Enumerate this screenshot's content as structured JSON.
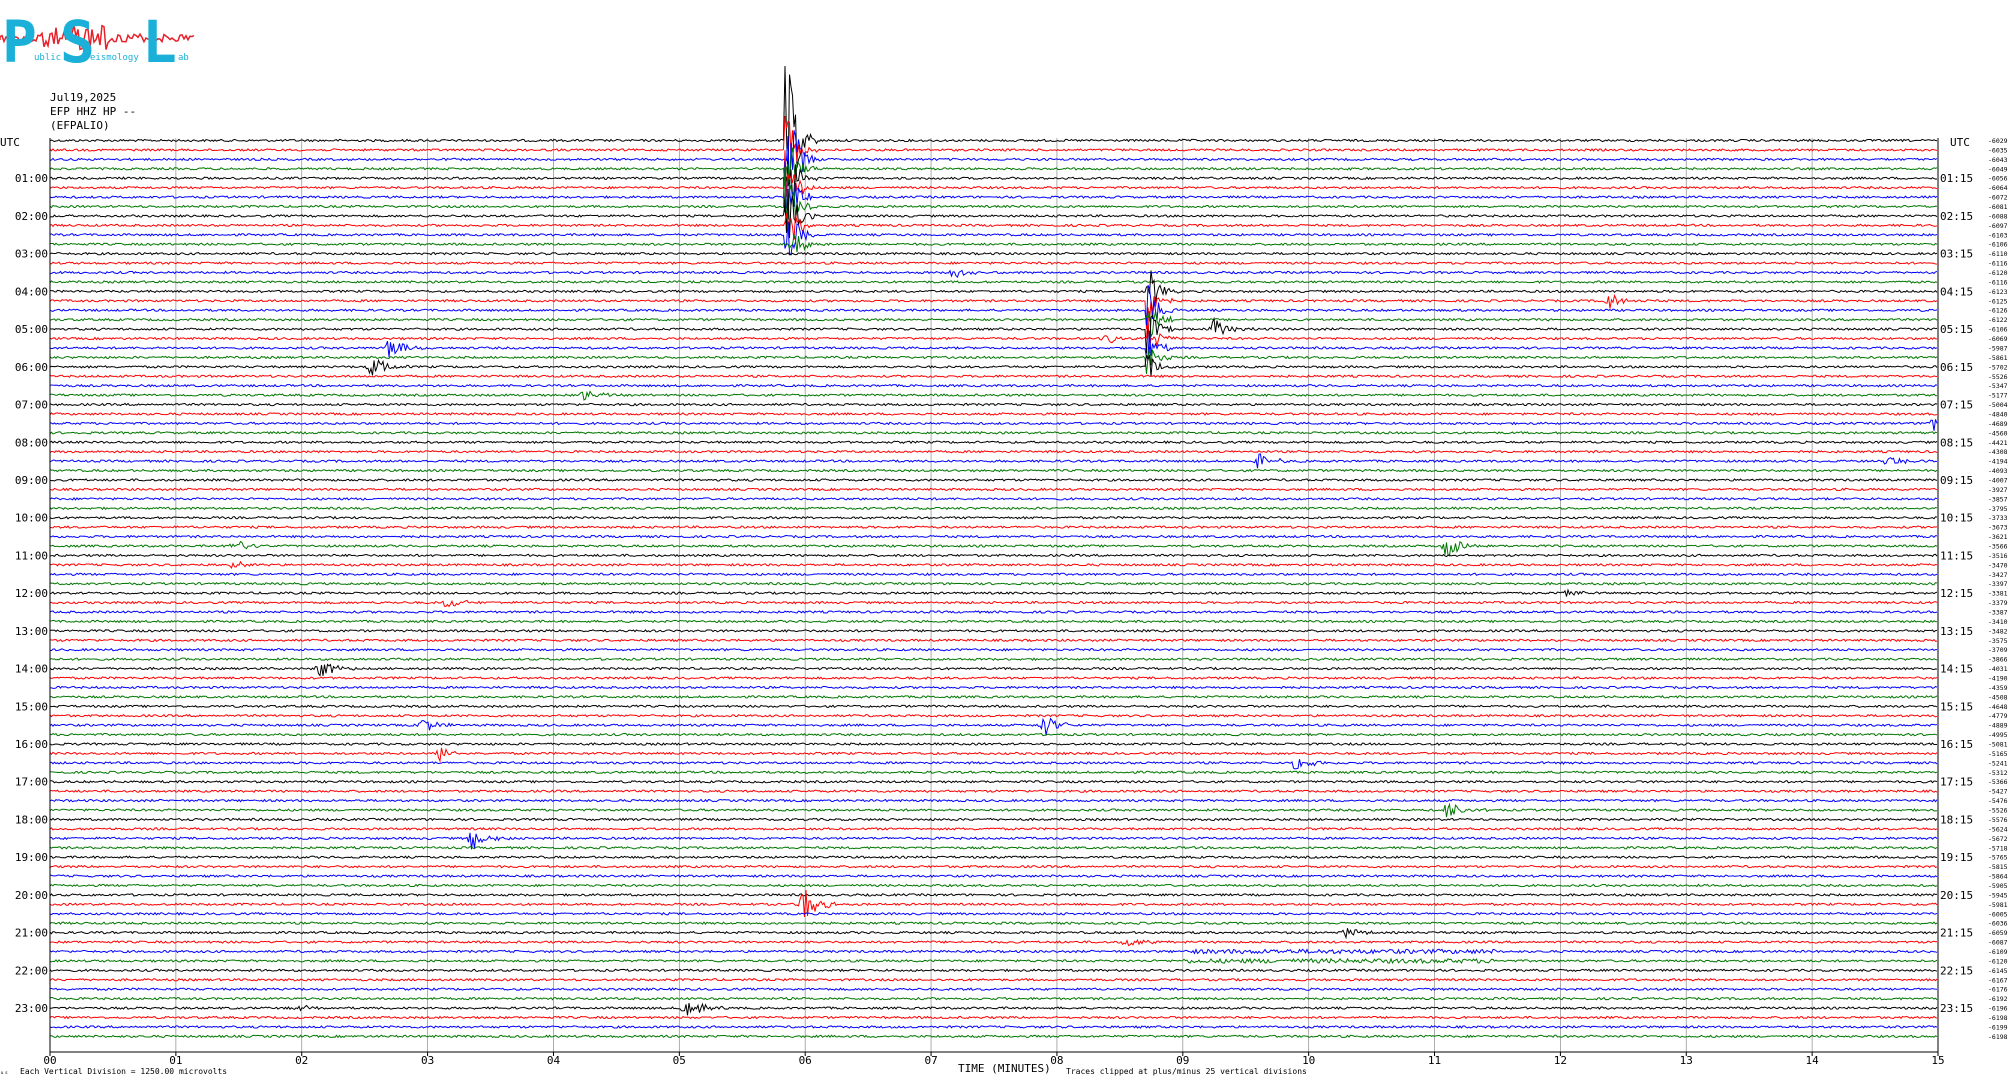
{
  "logo": {
    "letters": [
      "P",
      "S",
      "L"
    ],
    "words": [
      "ublic",
      "eismology",
      "ab"
    ],
    "color": "#1ab0d8",
    "wave_color": "#e8202a"
  },
  "header": {
    "date": "Jul19,2025",
    "station": "EFP HHZ HP --",
    "location": "(EFPALIO)"
  },
  "left_axis_title": "UTC",
  "right_axis_title": "UTC",
  "left_hour_labels": [
    "01:00",
    "02:00",
    "03:00",
    "04:00",
    "05:00",
    "06:00",
    "07:00",
    "08:00",
    "09:00",
    "10:00",
    "11:00",
    "12:00",
    "13:00",
    "14:00",
    "15:00",
    "16:00",
    "17:00",
    "18:00",
    "19:00",
    "20:00",
    "21:00",
    "22:00",
    "23:00"
  ],
  "right_hour_labels": [
    "01:15",
    "02:15",
    "03:15",
    "04:15",
    "05:15",
    "06:15",
    "07:15",
    "08:15",
    "09:15",
    "10:15",
    "11:15",
    "12:15",
    "13:15",
    "14:15",
    "15:15",
    "16:15",
    "17:15",
    "18:15",
    "19:15",
    "20:15",
    "21:15",
    "22:15",
    "23:15"
  ],
  "x_tick_labels": [
    "00",
    "01",
    "02",
    "03",
    "04",
    "05",
    "06",
    "07",
    "08",
    "09",
    "10",
    "11",
    "12",
    "13",
    "14",
    "15"
  ],
  "x_axis_title": "TIME (MINUTES)",
  "footer_left": "Each Vertical Division = 1250.00 microvolts",
  "footer_right": "Traces clipped at plus/minus 25 vertical divisions",
  "footer_mark": "ᵤₛ",
  "chart_data": {
    "type": "line",
    "description_kind": "helicorder",
    "x_range_minutes": [
      0,
      15
    ],
    "rows": 96,
    "row_duration_minutes": 15,
    "trace_colors": [
      "#000000",
      "#ff0000",
      "#0000ff",
      "#007700"
    ],
    "gridlines": true,
    "right_offset_labels": [
      "-6029",
      "-6035",
      "-6043",
      "-6049",
      "-6056",
      "-6064",
      "-6072",
      "-6081",
      "-6088",
      "-6097",
      "-6103",
      "-6106",
      "-6110",
      "-6116",
      "-6120",
      "-6116",
      "-6123",
      "-6125",
      "-6126",
      "-6122",
      "-6106",
      "-6069",
      "-5987",
      "-5861",
      "-5702",
      "-5526",
      "-5347",
      "-5177",
      "-5004",
      "-4840",
      "-4689",
      "-4560",
      "-4421",
      "-4308",
      "-4194",
      "-4093",
      "-4007",
      "-3927",
      "-3857",
      "-3795",
      "-3733",
      "-3673",
      "-3621",
      "-3566",
      "-3516",
      "-3470",
      "-3427",
      "-3397",
      "-3381",
      "-3379",
      "-3387",
      "-3410",
      "-3482",
      "-3575",
      "-3709",
      "-3866",
      "-4031",
      "-4190",
      "-4359",
      "-4508",
      "-4648",
      "-4779",
      "-4889",
      "-4995",
      "-5081",
      "-5165",
      "-5241",
      "-5312",
      "-5366",
      "-5427",
      "-5476",
      "-5526",
      "-5576",
      "-5624",
      "-5672",
      "-5718",
      "-5765",
      "-5815",
      "-5864",
      "-5905",
      "-5945",
      "-5981",
      "-6005",
      "-6036",
      "-6059",
      "-6087",
      "-6109",
      "-6120",
      "-6145",
      "-6167",
      "-6176",
      "-6192",
      "-6196",
      "-6198",
      "-6199",
      "-6198"
    ],
    "events": [
      {
        "row": 0,
        "minute": 5.85,
        "amp": 95,
        "type": "big"
      },
      {
        "row": 1,
        "minute": 5.85,
        "amp": 40,
        "type": "big"
      },
      {
        "row": 2,
        "minute": 5.88,
        "amp": 50,
        "type": "big"
      },
      {
        "row": 3,
        "minute": 5.85,
        "amp": 40,
        "type": "big"
      },
      {
        "row": 4,
        "minute": 5.85,
        "amp": 40,
        "type": "big"
      },
      {
        "row": 5,
        "minute": 5.85,
        "amp": 40,
        "type": "big"
      },
      {
        "row": 6,
        "minute": 5.85,
        "amp": 40,
        "type": "big"
      },
      {
        "row": 7,
        "minute": 5.85,
        "amp": 40,
        "type": "big"
      },
      {
        "row": 8,
        "minute": 5.85,
        "amp": 40,
        "type": "big"
      },
      {
        "row": 9,
        "minute": 5.85,
        "amp": 40,
        "type": "big"
      },
      {
        "row": 10,
        "minute": 5.85,
        "amp": 40,
        "type": "big"
      },
      {
        "row": 11,
        "minute": 5.9,
        "amp": 16,
        "type": "quake"
      },
      {
        "row": 14,
        "minute": 7.18,
        "amp": 7,
        "type": "quake"
      },
      {
        "row": 16,
        "minute": 8.72,
        "amp": 30,
        "type": "big"
      },
      {
        "row": 17,
        "minute": 8.72,
        "amp": 30,
        "type": "big"
      },
      {
        "row": 18,
        "minute": 8.72,
        "amp": 30,
        "type": "big"
      },
      {
        "row": 19,
        "minute": 8.72,
        "amp": 28,
        "type": "big"
      },
      {
        "row": 20,
        "minute": 8.72,
        "amp": 26,
        "type": "big"
      },
      {
        "row": 21,
        "minute": 8.72,
        "amp": 24,
        "type": "big"
      },
      {
        "row": 22,
        "minute": 8.72,
        "amp": 22,
        "type": "big"
      },
      {
        "row": 23,
        "minute": 8.72,
        "amp": 20,
        "type": "big"
      },
      {
        "row": 24,
        "minute": 8.72,
        "amp": 16,
        "type": "big"
      },
      {
        "row": 17,
        "minute": 12.38,
        "amp": 10,
        "type": "quake"
      },
      {
        "row": 20,
        "minute": 9.25,
        "amp": 12,
        "type": "quake"
      },
      {
        "row": 21,
        "minute": 8.4,
        "amp": 6,
        "type": "quake"
      },
      {
        "row": 22,
        "minute": 2.7,
        "amp": 12,
        "type": "quake"
      },
      {
        "row": 24,
        "minute": 2.55,
        "amp": 14,
        "type": "quake"
      },
      {
        "row": 27,
        "minute": 4.25,
        "amp": 7,
        "type": "quake"
      },
      {
        "row": 30,
        "minute": 14.95,
        "amp": 10,
        "type": "quake"
      },
      {
        "row": 34,
        "minute": 9.6,
        "amp": 9,
        "type": "quake"
      },
      {
        "row": 34,
        "minute": 14.6,
        "amp": 6,
        "type": "quake"
      },
      {
        "row": 43,
        "minute": 1.45,
        "amp": 9,
        "type": "quake"
      },
      {
        "row": 43,
        "minute": 11.1,
        "amp": 14,
        "type": "quake"
      },
      {
        "row": 45,
        "minute": 1.45,
        "amp": 4,
        "type": "quake"
      },
      {
        "row": 49,
        "minute": 3.15,
        "amp": 7,
        "type": "quake"
      },
      {
        "row": 48,
        "minute": 12.05,
        "amp": 5,
        "type": "quake"
      },
      {
        "row": 56,
        "minute": 2.15,
        "amp": 10,
        "type": "quake"
      },
      {
        "row": 62,
        "minute": 2.95,
        "amp": 9,
        "type": "quake"
      },
      {
        "row": 62,
        "minute": 7.9,
        "amp": 12,
        "type": "quake"
      },
      {
        "row": 65,
        "minute": 3.1,
        "amp": 9,
        "type": "quake"
      },
      {
        "row": 66,
        "minute": 9.9,
        "amp": 8,
        "type": "quake"
      },
      {
        "row": 71,
        "minute": 11.1,
        "amp": 10,
        "type": "quake"
      },
      {
        "row": 74,
        "minute": 3.35,
        "amp": 14,
        "type": "quake"
      },
      {
        "row": 81,
        "minute": 5.98,
        "amp": 20,
        "type": "quake"
      },
      {
        "row": 84,
        "minute": 10.3,
        "amp": 6,
        "type": "quake"
      },
      {
        "row": 85,
        "minute": 8.55,
        "amp": 6,
        "type": "quake"
      },
      {
        "row": 92,
        "minute": 5.05,
        "amp": 12,
        "type": "quake"
      },
      {
        "row": 92,
        "minute": 1.95,
        "amp": 4,
        "type": "quake"
      }
    ]
  }
}
